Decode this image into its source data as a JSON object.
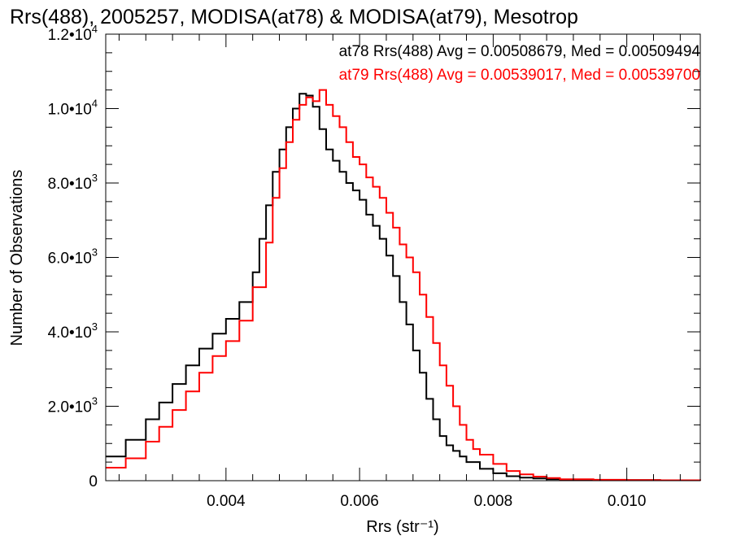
{
  "chart_data": {
    "type": "line",
    "step": true,
    "title": "Rrs(488), 2005257, MODISA(at78) & MODISA(at79), Mesotrop",
    "xlabel": "Rrs (str⁻¹)",
    "ylabel": "Number of Observations",
    "xlim": [
      0.0022,
      0.0111
    ],
    "ylim": [
      0,
      12000
    ],
    "xticks": [
      {
        "value": 0.004,
        "label": "0.004"
      },
      {
        "value": 0.006,
        "label": "0.006"
      },
      {
        "value": 0.008,
        "label": "0.008"
      },
      {
        "value": 0.01,
        "label": "0.010"
      }
    ],
    "yticks": [
      {
        "value": 0,
        "base": "0",
        "exp": ""
      },
      {
        "value": 2000,
        "base": "2.0•10",
        "exp": "3"
      },
      {
        "value": 4000,
        "base": "4.0•10",
        "exp": "3"
      },
      {
        "value": 6000,
        "base": "6.0•10",
        "exp": "3"
      },
      {
        "value": 8000,
        "base": "8.0•10",
        "exp": "3"
      },
      {
        "value": 10000,
        "base": "1.0•10",
        "exp": "4"
      },
      {
        "value": 12000,
        "base": "1.2•10",
        "exp": "4"
      }
    ],
    "annotations": [
      {
        "text": "at78 Rrs(488) Avg = 0.00508679, Med = 0.00509494",
        "color": "#000000"
      },
      {
        "text": "at79 Rrs(488) Avg = 0.00539017, Med = 0.00539700",
        "color": "#ff0000"
      }
    ],
    "series": [
      {
        "color": "#000000",
        "x": [
          0.0022,
          0.0025,
          0.0028,
          0.003,
          0.0032,
          0.0034,
          0.0036,
          0.0038,
          0.004,
          0.0042,
          0.0044,
          0.0045,
          0.0046,
          0.0047,
          0.0048,
          0.0049,
          0.005,
          0.0051,
          0.0052,
          0.0053,
          0.0054,
          0.0055,
          0.0056,
          0.0057,
          0.0058,
          0.0059,
          0.006,
          0.0061,
          0.0062,
          0.0063,
          0.0064,
          0.0065,
          0.0066,
          0.0067,
          0.0068,
          0.0069,
          0.007,
          0.0071,
          0.0072,
          0.0073,
          0.0074,
          0.0075,
          0.0076,
          0.0078,
          0.008,
          0.0082,
          0.0084,
          0.0086,
          0.0088,
          0.009,
          0.0095,
          0.01,
          0.0105,
          0.0111
        ],
        "y": [
          650,
          1100,
          1650,
          2100,
          2600,
          3100,
          3550,
          3950,
          4350,
          4800,
          5600,
          6500,
          7400,
          8300,
          8900,
          9500,
          10000,
          10400,
          10350,
          10050,
          9450,
          8900,
          8600,
          8300,
          8000,
          7800,
          7550,
          7150,
          6850,
          6500,
          6050,
          5500,
          4800,
          4200,
          3500,
          2900,
          2200,
          1650,
          1200,
          950,
          800,
          650,
          500,
          320,
          200,
          120,
          80,
          60,
          40,
          30,
          20,
          15,
          10,
          5
        ]
      },
      {
        "color": "#ff0000",
        "x": [
          0.0022,
          0.0025,
          0.0028,
          0.003,
          0.0032,
          0.0034,
          0.0036,
          0.0038,
          0.004,
          0.0042,
          0.0044,
          0.0046,
          0.0047,
          0.0048,
          0.0049,
          0.005,
          0.0051,
          0.0052,
          0.0053,
          0.0054,
          0.0055,
          0.0056,
          0.0057,
          0.0058,
          0.0059,
          0.006,
          0.0061,
          0.0062,
          0.0063,
          0.0064,
          0.0065,
          0.0066,
          0.0067,
          0.0068,
          0.0069,
          0.007,
          0.0071,
          0.0072,
          0.0073,
          0.0074,
          0.0075,
          0.0076,
          0.0077,
          0.0078,
          0.008,
          0.0082,
          0.0084,
          0.0086,
          0.0088,
          0.009,
          0.0095,
          0.01,
          0.0105,
          0.0111
        ],
        "y": [
          350,
          600,
          1050,
          1450,
          1900,
          2400,
          2900,
          3350,
          3750,
          4300,
          5200,
          6400,
          7600,
          8400,
          9100,
          9700,
          10100,
          10300,
          10200,
          10500,
          10100,
          9800,
          9500,
          9100,
          8700,
          8500,
          8150,
          7900,
          7600,
          7200,
          6800,
          6350,
          6000,
          5600,
          5000,
          4400,
          3700,
          3100,
          2550,
          2000,
          1500,
          1100,
          850,
          700,
          450,
          260,
          170,
          110,
          70,
          40,
          25,
          15,
          10,
          5
        ]
      }
    ]
  }
}
